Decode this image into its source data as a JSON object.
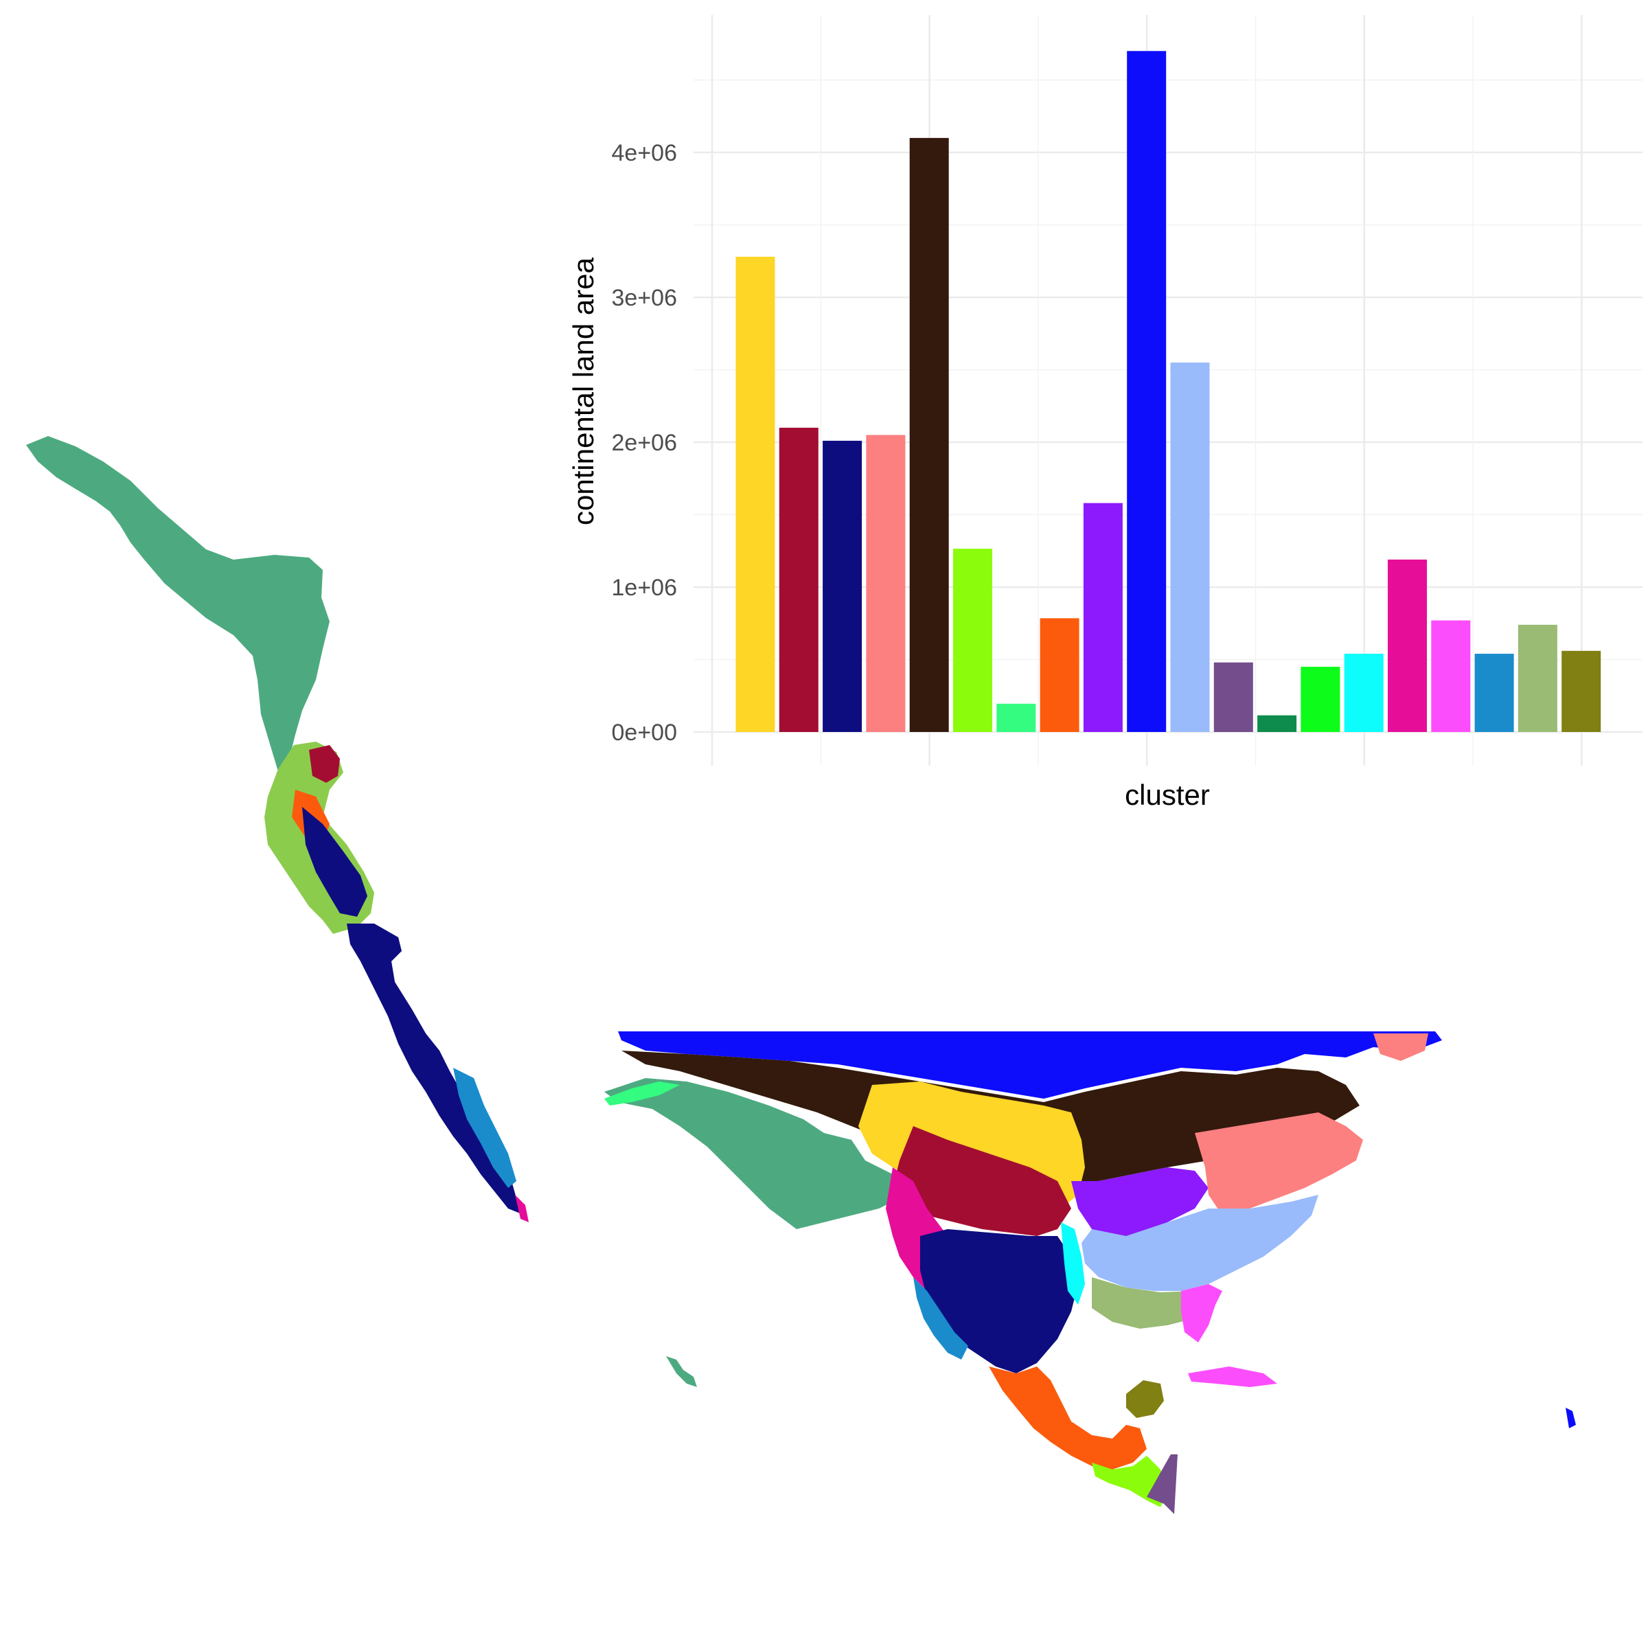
{
  "chart_data": {
    "type": "bar",
    "xlabel": "cluster",
    "ylabel": "continental land area",
    "ylim": [
      0,
      4900000
    ],
    "yticks": [
      {
        "value": 0,
        "label": "0e+00"
      },
      {
        "value": 1000000,
        "label": "1e+06"
      },
      {
        "value": 2000000,
        "label": "2e+06"
      },
      {
        "value": 3000000,
        "label": "3e+06"
      },
      {
        "value": 4000000,
        "label": "4e+06"
      }
    ],
    "grid": true,
    "legend": "none",
    "bars": [
      {
        "value": 3280000,
        "color": "#FDD626"
      },
      {
        "value": 2100000,
        "color": "#A30D32"
      },
      {
        "value": 2010000,
        "color": "#0D0D80"
      },
      {
        "value": 2050000,
        "color": "#FC8080"
      },
      {
        "value": 4100000,
        "color": "#331A0D"
      },
      {
        "value": 1265000,
        "color": "#8CFC0D"
      },
      {
        "value": 195000,
        "color": "#33FC80"
      },
      {
        "value": 785000,
        "color": "#FC5B0D"
      },
      {
        "value": 1580000,
        "color": "#8C1AFC"
      },
      {
        "value": 4700000,
        "color": "#0D0DFC"
      },
      {
        "value": 2550000,
        "color": "#99BBFC"
      },
      {
        "value": 480000,
        "color": "#734D8C"
      },
      {
        "value": 115000,
        "color": "#0D8C4D"
      },
      {
        "value": 450000,
        "color": "#0DFC1A"
      },
      {
        "value": 540000,
        "color": "#0DFCFC"
      },
      {
        "value": 1190000,
        "color": "#E60D99"
      },
      {
        "value": 770000,
        "color": "#FC4DFC"
      },
      {
        "value": 540000,
        "color": "#1A8CCC"
      },
      {
        "value": 740000,
        "color": "#99BB73"
      },
      {
        "value": 560000,
        "color": "#808013"
      }
    ]
  },
  "maps": {
    "left_strip": {
      "colors": [
        "#1A8CCC",
        "#0D0D80",
        "#FC5B0D",
        "#E60D99",
        "#A30D32",
        "#8CFC0D",
        "#FC4DFC",
        "#33FC80",
        "#0D8C4D",
        "#FDD626",
        "#99BB73"
      ]
    },
    "north_america": {
      "colors": [
        "#0D0DFC",
        "#331A0D",
        "#FDD626",
        "#A30D32",
        "#E60D99",
        "#0D0D80",
        "#1A8CCC",
        "#99BBFC",
        "#8C1AFC",
        "#FC8080",
        "#FC4DFC",
        "#99BB73",
        "#FC5B0D",
        "#0DFCFC",
        "#8CFC0D",
        "#734D8C",
        "#808013",
        "#0D8C4D",
        "#33FC80",
        "#0DFC1A"
      ]
    }
  }
}
